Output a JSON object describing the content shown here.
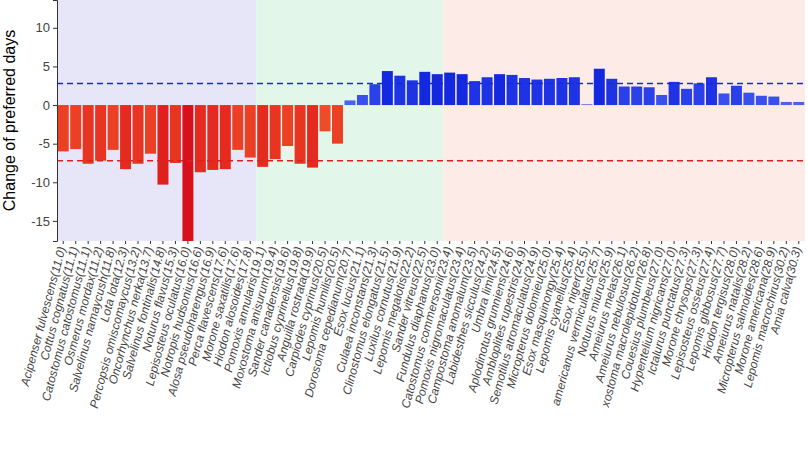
{
  "chart_data": {
    "type": "bar",
    "y_label": "Change of preferred days",
    "categories": [
      "Acipenser fulvescens(11.0)",
      "Cottus cognatus(11.1)",
      "Catostomus catostomus(11.1)",
      "Osmerus mordax(11.2)",
      "Salvelinus namaycush(11.8)",
      "Lota lota(12.3)",
      "Percopsis omiscomaycus(13.2)",
      "Oncorhynchus nerka(13.7)",
      "Salvelinus fontinalis(14.8)",
      "Noturus flavus(15.3)",
      "Lepisosteus oculatus(16.0)",
      "Notropis hudsonius(16.6)",
      "Alosa pseudoharengus(16.9)",
      "Perca flavescens(17.6)",
      "Morone saxatilis(17.6)",
      "Hiodon alosoides(17.8)",
      "Pomoxis annularis(19.1)",
      "Moxostoma anisurum(19.4)",
      "Sander canadensis(19.6)",
      "Ictiobus cyprinellus(19.8)",
      "Anguilla rostrata(19.9)",
      "Carpiodes cyprinus(20.5)",
      "Lepomis humilis(20.5)",
      "Dorosoma cepedianum(20.7)",
      "Esox lucius(21.1)",
      "Culaea inconstans(21.3)",
      "Clinostomus elongatus(21.5)",
      "Luxilus cornutus(21.9)",
      "Lepomis megalotis(22.2)",
      "Sander vitreus(22.5)",
      "Fundulus diaphanus(23.0)",
      "Catostomus commersonii(23.4)",
      "Pomoxis nigromaculatus(23.4)",
      "Campostoma anomalum(23.5)",
      "Labidesthes sicculus(24.2)",
      "Umbra limi(24.5)",
      "Aplodinotus grunniens(24.6)",
      "Ambloplites rupestris(24.9)",
      "Semotilus atromaculatus(24.9)",
      "Micropterus dolomieu(25.0)",
      "Esox masquinongy(25.4)",
      "Lepomis cyanellus(25.4)",
      "Esox niger(25.5)",
      "americanus vermiculatus(25.7)",
      "Noturus miurus(25.9)",
      "Ameiurus melas(26.1)",
      "Ameiurus nebulosus(26.2)",
      "xostoma macrolepidotum(26.8)",
      "Couesius plumbeus(27.0)",
      "Hypentelium nigricans(27.0)",
      "Ictalurus punctatus(27.3)",
      "Morone chrysops(27.3)",
      "Lepisosteus osseus(27.4)",
      "Lepomis gibbosus(27.7)",
      "Hiodon tergisus(28.0)",
      "Ameiurus natalis(28.2)",
      "Micropterus salmoides(28.6)",
      "Morone americana(28.9)",
      "Lepomis macrochirus(30.2)",
      "Amia calva(30.3)"
    ],
    "values": [
      -6.0,
      -5.7,
      -7.6,
      -7.2,
      -5.8,
      -8.3,
      -7.6,
      -6.3,
      -10.3,
      -7.5,
      -17.6,
      -8.7,
      -8.4,
      -8.3,
      -5.8,
      -6.8,
      -8.0,
      -7.0,
      -5.3,
      -7.6,
      -8.1,
      -3.4,
      -5.0,
      0.6,
      1.3,
      2.7,
      4.4,
      3.8,
      3.2,
      4.3,
      4.0,
      4.2,
      4.0,
      3.1,
      3.6,
      4.0,
      3.9,
      3.5,
      3.3,
      3.4,
      3.5,
      3.6,
      0.1,
      4.7,
      3.4,
      2.4,
      2.4,
      2.3,
      1.3,
      3.0,
      2.1,
      2.8,
      3.6,
      1.5,
      2.5,
      1.6,
      1.2,
      1.1,
      0.4,
      0.4
    ],
    "colors": [
      "#eb4024",
      "#eb4024",
      "#e83522",
      "#e83522",
      "#eb4024",
      "#e52a20",
      "#e83522",
      "#eb4024",
      "#e0201f",
      "#e83522",
      "#d7101c",
      "#e52a20",
      "#e52a20",
      "#e52a20",
      "#eb4024",
      "#eb4024",
      "#e52a20",
      "#e83522",
      "#eb4024",
      "#e83522",
      "#e52a20",
      "#ee4b28",
      "#eb4024",
      "#4a60f0",
      "#3a50ec",
      "#2a40e8",
      "#1428e0",
      "#1e34e4",
      "#1e34e4",
      "#1428e0",
      "#1428e0",
      "#1428e0",
      "#1428e0",
      "#1e34e4",
      "#1e34e4",
      "#1428e0",
      "#1e34e4",
      "#1e34e4",
      "#1e34e4",
      "#1e34e4",
      "#1e34e4",
      "#1e34e4",
      "#4a60f0",
      "#1428e0",
      "#1e34e4",
      "#2a40e8",
      "#2a40e8",
      "#2a40e8",
      "#3a50ec",
      "#1e34e4",
      "#2a40e8",
      "#2a40e8",
      "#1e34e4",
      "#3a50ec",
      "#2a40e8",
      "#3a50ec",
      "#3a50ec",
      "#3a50ec",
      "#4a60f0",
      "#4a60f0"
    ],
    "bands": [
      {
        "from": "Acipenser fulvescens(11.0)",
        "to": "Hiodon alosoides(17.8)",
        "color": "#e6e6f8"
      },
      {
        "from": "Pomoxis annularis(19.1)",
        "to": "Fundulus diaphanus(23.0)",
        "color": "#e2f7ea"
      },
      {
        "from": "Catostomus commersonii(23.4)",
        "to": "Amia calva(30.3)",
        "color": "#fcebe6"
      }
    ],
    "reference_lines": [
      {
        "value": 2.8,
        "color": "#1428e0",
        "line_style": "dashed"
      },
      {
        "value": -7.2,
        "color": "#e0201f",
        "line_style": "dashed"
      }
    ],
    "ylim": [
      -17.6,
      13.6
    ],
    "yticks": [
      -15,
      -10,
      -5,
      0,
      5,
      10
    ],
    "grid": false
  }
}
